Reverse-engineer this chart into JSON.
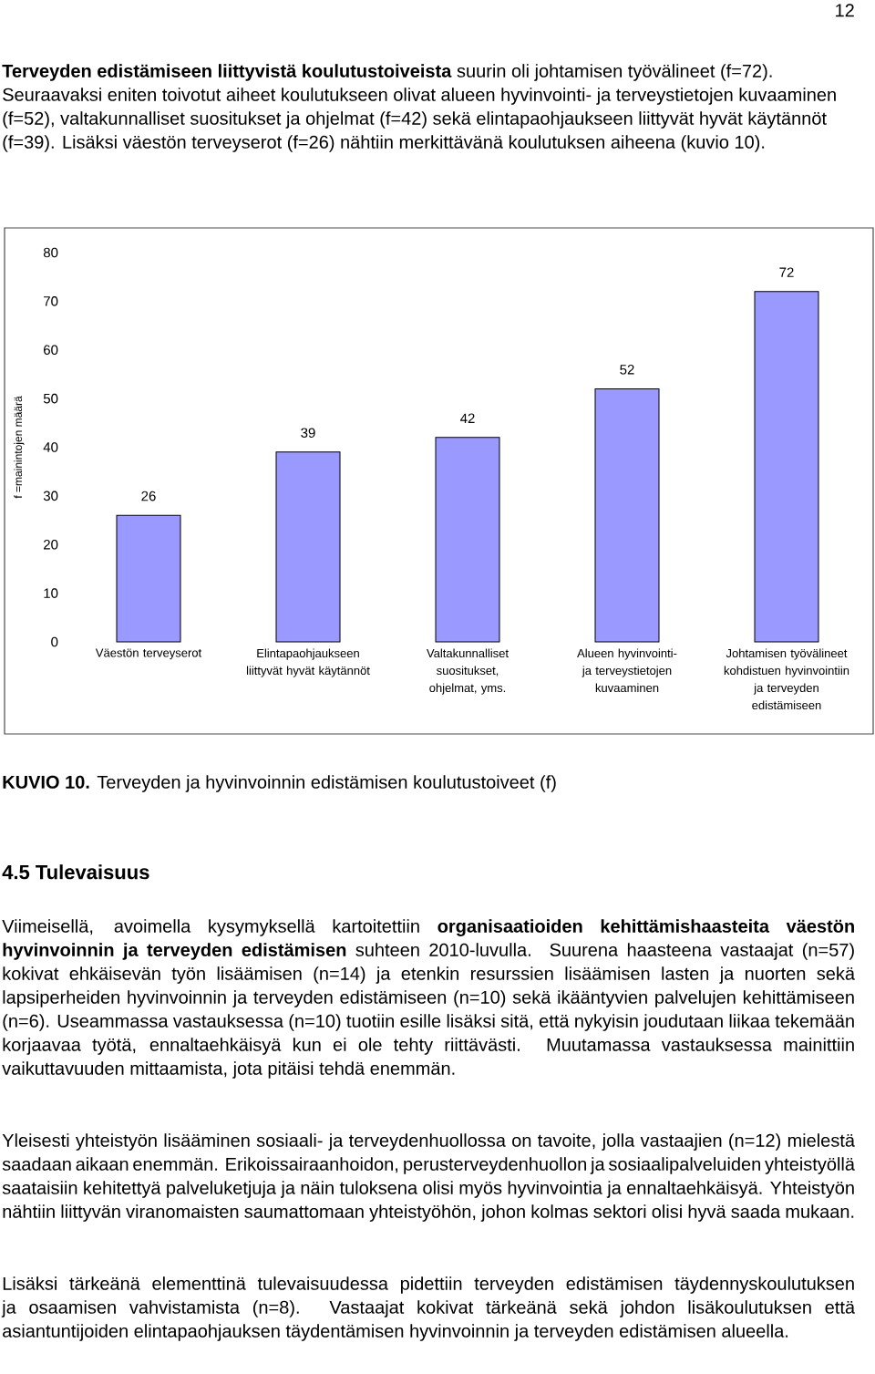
{
  "chart_data": {
    "type": "bar",
    "title": "**KUVIO 10.** Terveyden ja hyvinvoinnin edistämisen koulutustoiveet (f)",
    "ylabel": "f =mainintojen määrä",
    "categories": [
      "Väestön terveyserot",
      "Elintapaohjaukseen liittyvät hyvät käytännöt",
      "Valtakunnalliset suositukset, ohjelmat, yms.",
      "Alueen hyvinvointi- ja terveystietojen kuvaaminen",
      "Johtamisen työvälineet kohdistuen hyvinvointiin ja terveyden edistämiseen"
    ],
    "values": [
      26,
      39,
      42,
      52,
      72
    ],
    "color": "#9999ff",
    "ylim": [
      0,
      80
    ],
    "yticks": [
      0,
      10,
      20,
      30,
      40,
      50,
      60,
      70,
      80
    ],
    "grid": false,
    "data_labels": true,
    "annotations": [
      "12",
      "**Terveyden edistämiseen liittyvistä koulutustoiveista** suurin oli johtamisen työvälineet (f=72). Seuraavaksi eniten toivotut aiheet koulutukseen olivat alueen hyvinvointi- ja terveystietojen kuvaaminen (f=52), valtakunnalliset suositukset ja ohjelmat (f=42) sekä elintapaohjaukseen liittyvät hyvät käytännöt (f=39). Lisäksi väestön terveyserot (f=26) nähtiin merkittävänä koulutuksen aiheena (kuvio 10).",
      "4.5 Tulevaisuus",
      "Viimeisellä, avoimella kysymyksellä kartoitettiin **organisaatioiden kehittämishaasteita väestön hyvinvoinnin ja terveyden edistämisen** suhteen 2010-luvulla. Suurena haasteena vastaajat (n=57) kokivat ehkäisevän työn lisäämisen (n=14) ja etenkin resurssien lisäämisen lasten ja nuorten sekä lapsiperheiden hyvinvoinnin ja terveyden edistämiseen (n=10) sekä ikääntyvien palvelujen kehittämiseen (n=6). Useammassa vastauksessa (n=10) tuotiin esille lisäksi sitä, että nykyisin joudutaan liikaa tekemään korjaavaa työtä, ennaltaehkäisyä kun ei ole tehty riittävästi. Muutamassa vastauksessa mainittiin vaikuttavuuden mittaamista, jota pitäisi tehdä enemmän.",
      "Yleisesti yhteistyön lisääminen sosiaali- ja terveydenhuollossa on tavoite, jolla vastaajien (n=12) mielestä saadaan aikaan enemmän. Erikoissairaanhoidon, perusterveydenhuollon ja sosiaalipalveluiden yhteistyöllä saataisiin kehitettyä palveluketjuja ja näin tuloksena olisi myös hyvinvointia ja ennaltaehkäisyä. Yhteistyön nähtiin liittyvän viranomaisten saumattomaan yhteistyöhön, johon kolmas sektori olisi hyvä saada mukaan.",
      "Lisäksi tärkeänä elementtinä tulevaisuudessa pidettiin terveyden edistämisen täydennyskoulutuksen ja osaamisen vahvistamista (n=8). Vastaajat kokivat tärkeänä sekä johdon lisäkoulutuksen että asiantuntijoiden elintapaohjauksen täydentämisen hyvinvoinnin ja terveyden edistämisen alueella."
    ]
  }
}
